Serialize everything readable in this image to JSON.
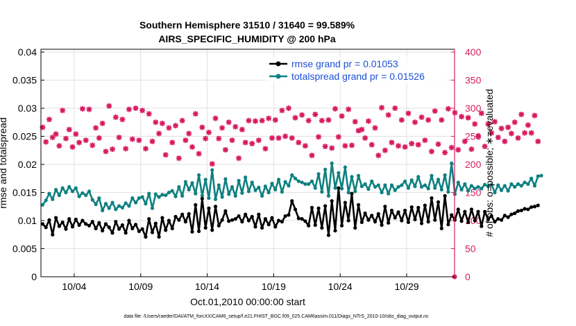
{
  "chart_data": {
    "type": "line",
    "title": "Southern Hemisphere 31510 / 31640 = 99.589%",
    "subtitle": "AIRS_SPECIFIC_HUMIDITY @ 200 hPa",
    "xlabel": "Oct.01,2010 00:00:00 start",
    "ylabel": "rmse and totalspread",
    "y2label": "# of obs: o=possible; ∗=evaluated",
    "footer": "data file: /Users/raeder/DAI/ATM_forcXX/CAM6_setup/f.e21.FHIST_BGC.f09_025.CAM6assim.011/Diags_NTrS_2010-10/obs_diag_output.nc",
    "xlim": [
      1.5,
      32.6
    ],
    "ylim": [
      0,
      0.0405
    ],
    "y2lim": [
      0,
      405
    ],
    "x_ticks": [
      4,
      9,
      14,
      19,
      24,
      29
    ],
    "x_tick_labels": [
      "10/04",
      "10/09",
      "10/14",
      "10/19",
      "10/24",
      "10/29"
    ],
    "y_ticks": [
      0,
      0.005,
      0.01,
      0.015,
      0.02,
      0.025,
      0.03,
      0.035,
      0.04
    ],
    "y_tick_labels": [
      "0",
      "0.005",
      "0.01",
      "0.015",
      "0.02",
      "0.025",
      "0.03",
      "0.035",
      "0.04"
    ],
    "y2_ticks": [
      0,
      50,
      100,
      150,
      200,
      250,
      300,
      350,
      400
    ],
    "y2_tick_labels": [
      "0",
      "50",
      "100",
      "150",
      "200",
      "250",
      "300",
      "350",
      "400"
    ],
    "grid": true,
    "legend_position": "top-right",
    "x_start": 1.625,
    "x_step": 0.25,
    "series": [
      {
        "name": "rmse grand pr = 0.01053",
        "color": "#000000",
        "axis": "left",
        "values": [
          0.0094,
          0.0088,
          0.0101,
          0.0075,
          0.0105,
          0.009,
          0.0097,
          0.0085,
          0.0103,
          0.0089,
          0.0102,
          0.0092,
          0.01,
          0.0094,
          0.0091,
          0.0098,
          0.0086,
          0.0096,
          0.0082,
          0.0094,
          0.0088,
          0.0078,
          0.0098,
          0.0085,
          0.0092,
          0.0078,
          0.01,
          0.0086,
          0.0093,
          0.0081,
          0.0085,
          0.0071,
          0.0103,
          0.0079,
          0.0095,
          0.0071,
          0.0105,
          0.0083,
          0.01,
          0.0086,
          0.0107,
          0.0101,
          0.0111,
          0.0098,
          0.0112,
          0.008,
          0.0128,
          0.0081,
          0.0139,
          0.0087,
          0.0122,
          0.0083,
          0.0125,
          0.0091,
          0.0101,
          0.0117,
          0.0099,
          0.0101,
          0.0103,
          0.0108,
          0.0098,
          0.0111,
          0.01,
          0.0107,
          0.0089,
          0.0111,
          0.0087,
          0.0103,
          0.0093,
          0.0105,
          0.0089,
          0.01,
          0.0098,
          0.0108,
          0.011,
          0.0135,
          0.012,
          0.0104,
          0.0103,
          0.0099,
          0.0091,
          0.0123,
          0.0092,
          0.0122,
          0.0087,
          0.0126,
          0.0074,
          0.0135,
          0.0082,
          0.0158,
          0.0091,
          0.0132,
          0.01,
          0.0148,
          0.0087,
          0.0128,
          0.0097,
          0.0113,
          0.0101,
          0.0109,
          0.0098,
          0.0112,
          0.0092,
          0.0125,
          0.0096,
          0.0118,
          0.0105,
          0.0115,
          0.01,
          0.0118,
          0.0097,
          0.0124,
          0.0102,
          0.0123,
          0.0095,
          0.0127,
          0.0098,
          0.014,
          0.0101,
          0.0133,
          0.0086,
          0.0144,
          0.0093,
          0.011,
          0.0101,
          0.012,
          0.0099,
          0.0116,
          0.0097,
          0.012,
          0.01,
          0.0116,
          0.009,
          0.0116,
          0.0102,
          0.0108,
          0.0098,
          0.0103,
          0.0101,
          0.0109,
          0.0106,
          0.0111,
          0.0113,
          0.0117,
          0.0118,
          0.0121,
          0.012,
          0.0124,
          0.0125,
          0.0127
        ]
      },
      {
        "name": "totalspread grand pr = 0.01526",
        "color": "#0f8080",
        "axis": "left",
        "values": [
          0.0128,
          0.0136,
          0.0148,
          0.0138,
          0.0155,
          0.0145,
          0.0158,
          0.015,
          0.016,
          0.0152,
          0.0158,
          0.0143,
          0.0149,
          0.0145,
          0.0152,
          0.0137,
          0.0129,
          0.014,
          0.0118,
          0.013,
          0.0122,
          0.0132,
          0.012,
          0.0126,
          0.0123,
          0.0131,
          0.0126,
          0.014,
          0.0132,
          0.014,
          0.0142,
          0.013,
          0.0148,
          0.0122,
          0.0147,
          0.0142,
          0.0146,
          0.0145,
          0.015,
          0.0153,
          0.0143,
          0.016,
          0.0144,
          0.0169,
          0.0155,
          0.0167,
          0.0148,
          0.0181,
          0.0144,
          0.0173,
          0.014,
          0.019,
          0.0138,
          0.0163,
          0.0142,
          0.0174,
          0.0147,
          0.016,
          0.0144,
          0.0171,
          0.0149,
          0.0177,
          0.0152,
          0.0168,
          0.0154,
          0.0159,
          0.0144,
          0.0161,
          0.015,
          0.0166,
          0.0155,
          0.0173,
          0.0151,
          0.0169,
          0.0162,
          0.0181,
          0.0175,
          0.017,
          0.0168,
          0.0165,
          0.0165,
          0.017,
          0.0158,
          0.0183,
          0.0151,
          0.0191,
          0.0144,
          0.0202,
          0.0158,
          0.0185,
          0.0157,
          0.0195,
          0.015,
          0.0178,
          0.0152,
          0.018,
          0.0161,
          0.0165,
          0.0156,
          0.017,
          0.016,
          0.0163,
          0.015,
          0.0163,
          0.0148,
          0.0163,
          0.0154,
          0.016,
          0.0163,
          0.017,
          0.0158,
          0.0172,
          0.0161,
          0.0178,
          0.016,
          0.0163,
          0.0157,
          0.018,
          0.0158,
          0.0173,
          0.0155,
          0.0181,
          0.0151,
          0.0202,
          0.0147,
          0.0168,
          0.0155,
          0.0165,
          0.0153,
          0.0162,
          0.0157,
          0.016,
          0.0157,
          0.0164,
          0.0161,
          0.0164,
          0.015,
          0.0163,
          0.0154,
          0.0162,
          0.0153,
          0.0165,
          0.016,
          0.0165,
          0.0162,
          0.0168,
          0.0165,
          0.0175,
          0.0162,
          0.0179,
          0.018
        ]
      },
      {
        "name": "obs count",
        "color": "#d81b60",
        "axis": "right",
        "values": [
          266,
          240,
          280,
          248,
          254,
          233,
          296,
          246,
          262,
          231,
          254,
          239,
          299,
          243,
          298,
          234,
          265,
          247,
          273,
          223,
          304,
          227,
          284,
          248,
          280,
          228,
          298,
          245,
          300,
          243,
          296,
          228,
          290,
          241,
          275,
          255,
          273,
          217,
          265,
          239,
          269,
          211,
          278,
          243,
          255,
          231,
          290,
          219,
          266,
          246,
          257,
          201,
          282,
          246,
          265,
          226,
          275,
          243,
          267,
          211,
          262,
          239,
          278,
          237,
          277,
          243,
          278,
          228,
          282,
          247,
          279,
          247,
          296,
          250,
          300,
          247,
          283,
          239,
          288,
          233,
          278,
          216,
          289,
          249,
          278,
          232,
          279,
          229,
          299,
          249,
          286,
          233,
          298,
          234,
          276,
          260,
          262,
          247,
          277,
          235,
          265,
          216,
          301,
          225,
          288,
          239,
          300,
          233,
          279,
          231,
          291,
          237,
          275,
          235,
          284,
          243,
          279,
          223,
          295,
          236,
          279,
          221,
          299,
          230,
          292,
          226,
          285,
          241,
          283,
          227,
          272,
          250,
          291,
          232,
          272,
          256,
          276,
          248,
          264,
          241,
          266,
          255,
          275,
          247,
          289,
          256,
          270,
          256,
          287,
          241
        ]
      }
    ]
  }
}
